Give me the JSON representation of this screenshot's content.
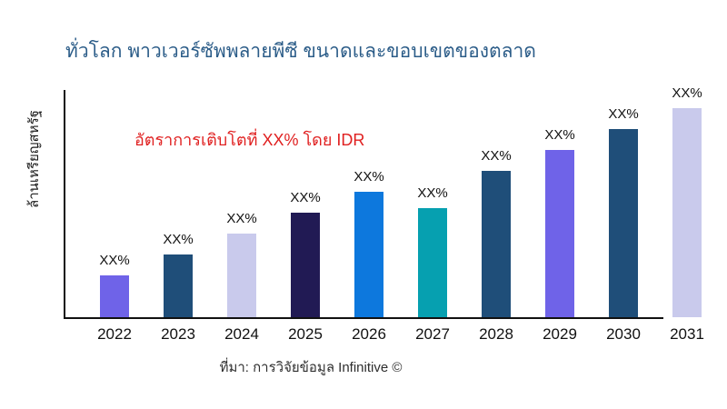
{
  "title": "ทั่วโลก พาวเวอร์ซัพพลายพีซี ขนาดและขอบเขตของตลาด",
  "annotation": "อัตราการเติบโตที่ XX% โดย IDR",
  "y_axis_label": "ล้านเหรียญสหรัฐ",
  "source": "ที่มา: การวิจัยข้อมูล Infinitive ©",
  "colors": {
    "title_text": "#2b5c88",
    "annotation_text": "#e02020",
    "axis_line": "#111111",
    "label_text": "#111111"
  },
  "chart_data": {
    "type": "bar",
    "title": "ทั่วโลก พาวเวอร์ซัพพลายพีซี ขนาดและขอบเขตของตลาด",
    "xlabel": "",
    "ylabel": "ล้านเหรียญสหรัฐ",
    "categories": [
      "2022",
      "2023",
      "2024",
      "2025",
      "2026",
      "2027",
      "2028",
      "2029",
      "2030",
      "2031"
    ],
    "data_labels": [
      "XX%",
      "XX%",
      "XX%",
      "XX%",
      "XX%",
      "XX%",
      "XX%",
      "XX%",
      "XX%",
      "XX%"
    ],
    "values_relative_pct_of_max": [
      20,
      30,
      40,
      50,
      60,
      52,
      70,
      80,
      90,
      100
    ],
    "bar_colors": [
      "#6f63e8",
      "#1f4e79",
      "#c9caec",
      "#211a54",
      "#0d78dd",
      "#06a0b0",
      "#1f4e79",
      "#6f63e8",
      "#1f4e79",
      "#c9caec"
    ],
    "grid": false,
    "legend": false,
    "y_ticks_shown": false,
    "annotation": "อัตราการเติบโตที่ XX% โดย IDR"
  }
}
